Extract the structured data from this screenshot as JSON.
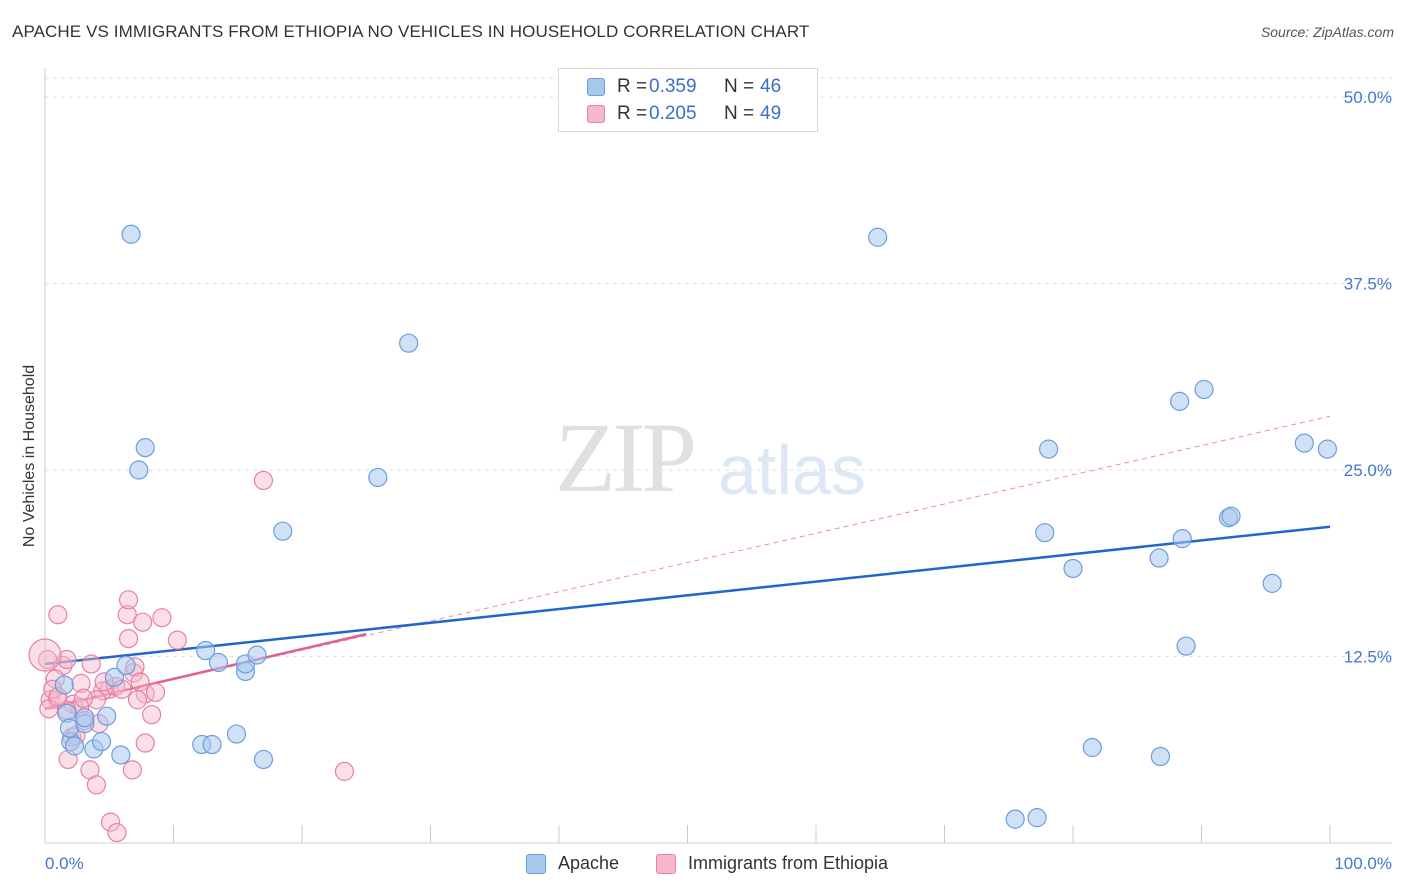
{
  "title": "APACHE VS IMMIGRANTS FROM ETHIOPIA NO VEHICLES IN HOUSEHOLD CORRELATION CHART",
  "source": "Source: ZipAtlas.com",
  "watermark": {
    "zip": "ZIP",
    "atlas": "atlas"
  },
  "legend": {
    "apache": {
      "r_label": "R =",
      "r_value": "0.359",
      "n_label": "N =",
      "n_value": "46"
    },
    "ethiopia": {
      "r_label": "R =",
      "r_value": "0.205",
      "n_label": "N =",
      "n_value": "49"
    }
  },
  "bottom_legend": {
    "apache": "Apache",
    "ethiopia": "Immigrants from Ethiopia"
  },
  "chart_data": {
    "type": "scatter",
    "title": "APACHE VS IMMIGRANTS FROM ETHIOPIA NO VEHICLES IN HOUSEHOLD CORRELATION CHART",
    "xlabel": "",
    "ylabel": "No Vehicles in Household",
    "xlim": [
      0,
      100
    ],
    "ylim": [
      0,
      50
    ],
    "x_tick_labels": [
      "0.0%",
      "100.0%"
    ],
    "y_ticks": [
      12.5,
      25.0,
      37.5,
      50.0
    ],
    "y_tick_labels": [
      "12.5%",
      "25.0%",
      "37.5%",
      "50.0%"
    ],
    "colors": {
      "apache": "#6a9ee0",
      "apache_fill": "#a9c8ee",
      "ethiopia": "#e880a4",
      "ethiopia_fill": "#f5b8cc",
      "apache_line": "#2266cc",
      "ethiopia_line": "#e06090"
    },
    "series": [
      {
        "name": "Apache",
        "points": [
          [
            6.7,
            40.8
          ],
          [
            64.8,
            40.6
          ],
          [
            28.3,
            33.5
          ],
          [
            7.8,
            26.5
          ],
          [
            7.3,
            25.0
          ],
          [
            25.9,
            24.5
          ],
          [
            18.5,
            20.9
          ],
          [
            1.5,
            10.6
          ],
          [
            1.7,
            8.7
          ],
          [
            2.0,
            6.8
          ],
          [
            1.9,
            7.7
          ],
          [
            2.3,
            6.5
          ],
          [
            3.1,
            8.0
          ],
          [
            3.1,
            8.4
          ],
          [
            3.8,
            6.3
          ],
          [
            4.4,
            6.8
          ],
          [
            4.8,
            8.5
          ],
          [
            5.4,
            11.1
          ],
          [
            5.9,
            5.9
          ],
          [
            6.3,
            11.9
          ],
          [
            12.2,
            6.6
          ],
          [
            13.0,
            6.6
          ],
          [
            12.5,
            12.9
          ],
          [
            13.5,
            12.1
          ],
          [
            14.9,
            7.3
          ],
          [
            15.6,
            11.5
          ],
          [
            15.6,
            12.0
          ],
          [
            16.5,
            12.6
          ],
          [
            17.0,
            5.6
          ],
          [
            78.1,
            26.4
          ],
          [
            77.8,
            20.8
          ],
          [
            80.0,
            18.4
          ],
          [
            88.3,
            29.6
          ],
          [
            90.2,
            30.4
          ],
          [
            86.7,
            19.1
          ],
          [
            88.5,
            20.4
          ],
          [
            92.1,
            21.8
          ],
          [
            92.3,
            21.9
          ],
          [
            95.5,
            17.4
          ],
          [
            98.0,
            26.8
          ],
          [
            99.8,
            26.4
          ],
          [
            88.8,
            13.2
          ],
          [
            81.5,
            6.4
          ],
          [
            86.8,
            5.8
          ],
          [
            75.5,
            1.6
          ],
          [
            77.2,
            1.7
          ]
        ],
        "trend": {
          "x": [
            0,
            100
          ],
          "y": [
            12.0,
            21.2
          ]
        }
      },
      {
        "name": "Immigrants from Ethiopia",
        "points": [
          [
            17.0,
            24.3
          ],
          [
            1.0,
            15.3
          ],
          [
            6.4,
            15.3
          ],
          [
            6.5,
            13.7
          ],
          [
            7.6,
            14.8
          ],
          [
            9.1,
            15.1
          ],
          [
            6.5,
            16.3
          ],
          [
            10.3,
            13.6
          ],
          [
            0.2,
            12.3
          ],
          [
            1.4,
            11.9
          ],
          [
            1.7,
            12.3
          ],
          [
            3.6,
            12.0
          ],
          [
            6.9,
            11.4
          ],
          [
            7.0,
            11.8
          ],
          [
            0.8,
            11.0
          ],
          [
            2.8,
            10.7
          ],
          [
            5.0,
            10.3
          ],
          [
            4.5,
            10.2
          ],
          [
            5.5,
            10.5
          ],
          [
            6.0,
            10.3
          ],
          [
            4.6,
            10.8
          ],
          [
            7.4,
            10.8
          ],
          [
            7.8,
            10.0
          ],
          [
            8.6,
            10.1
          ],
          [
            0.4,
            9.6
          ],
          [
            1.0,
            9.6
          ],
          [
            2.2,
            9.3
          ],
          [
            2.7,
            9.1
          ],
          [
            4.0,
            9.6
          ],
          [
            7.2,
            9.6
          ],
          [
            0.3,
            9.0
          ],
          [
            1.7,
            8.9
          ],
          [
            8.3,
            8.6
          ],
          [
            3.1,
            8.2
          ],
          [
            4.2,
            8.0
          ],
          [
            2.1,
            7.1
          ],
          [
            2.4,
            7.2
          ],
          [
            7.8,
            6.7
          ],
          [
            1.8,
            5.6
          ],
          [
            3.5,
            4.9
          ],
          [
            6.8,
            4.9
          ],
          [
            4.0,
            3.9
          ],
          [
            23.3,
            4.8
          ],
          [
            5.1,
            1.4
          ],
          [
            5.6,
            0.7
          ],
          [
            0.6,
            10.3
          ],
          [
            1.0,
            9.8
          ],
          [
            3.0,
            9.7
          ],
          [
            0.0,
            12.6
          ]
        ],
        "trend": {
          "x": [
            0,
            25
          ],
          "y": [
            9.0,
            14.0
          ],
          "extended": {
            "x": [
              0,
              100
            ],
            "y": [
              9.0,
              28.6
            ]
          }
        }
      }
    ]
  }
}
